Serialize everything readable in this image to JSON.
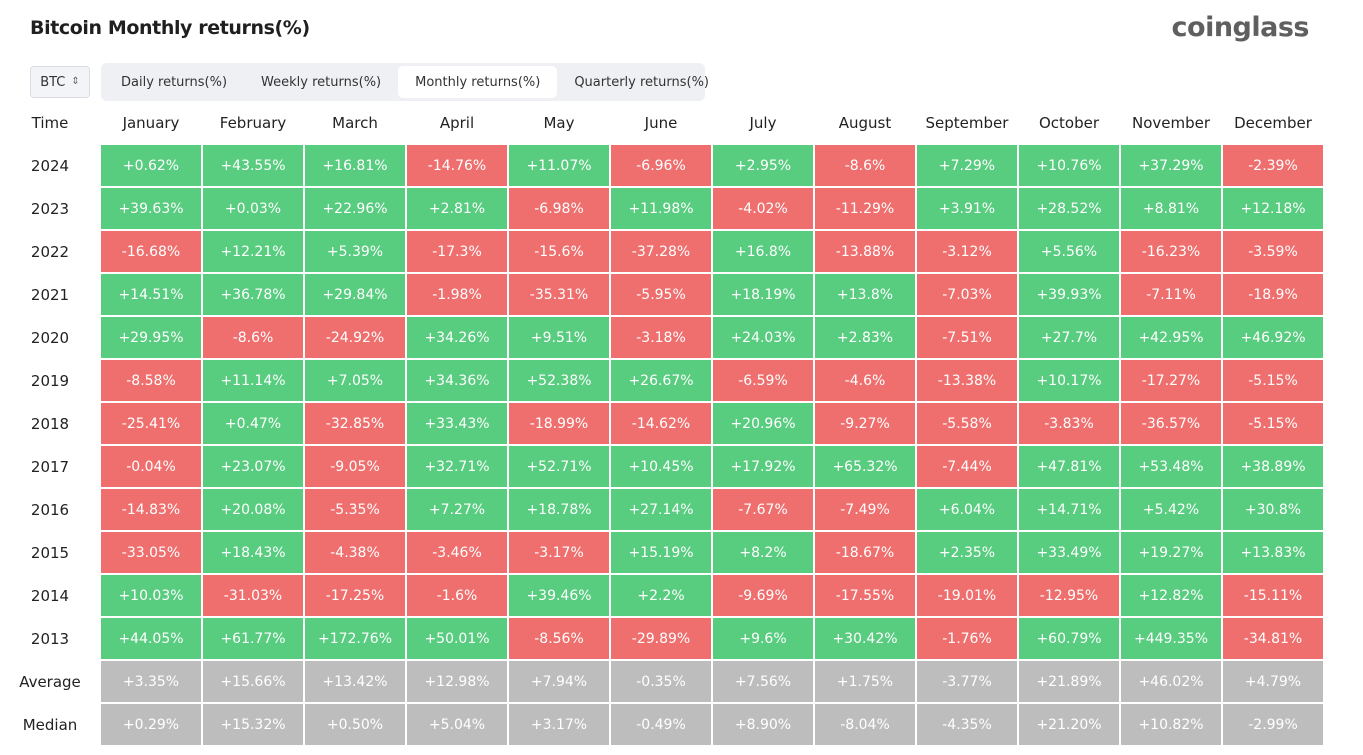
{
  "title": "Bitcoin Monthly returns(%)",
  "logo": "coinglass",
  "symbol": "BTC",
  "tabs": [
    "Daily returns(%)",
    "Weekly returns(%)",
    "Monthly returns(%)",
    "Quarterly returns(%)"
  ],
  "active_tab": 2,
  "colors": {
    "positive": "#58cc7f",
    "negative": "#ef6f6e",
    "summary": "#bdbdbd"
  },
  "header": [
    "Time",
    "January",
    "February",
    "March",
    "April",
    "May",
    "June",
    "July",
    "August",
    "September",
    "October",
    "November",
    "December"
  ],
  "rows": [
    {
      "label": "2024",
      "kind": "year",
      "values": [
        "+0.62%",
        "+43.55%",
        "+16.81%",
        "-14.76%",
        "+11.07%",
        "-6.96%",
        "+2.95%",
        "-8.6%",
        "+7.29%",
        "+10.76%",
        "+37.29%",
        "-2.39%"
      ]
    },
    {
      "label": "2023",
      "kind": "year",
      "values": [
        "+39.63%",
        "+0.03%",
        "+22.96%",
        "+2.81%",
        "-6.98%",
        "+11.98%",
        "-4.02%",
        "-11.29%",
        "+3.91%",
        "+28.52%",
        "+8.81%",
        "+12.18%"
      ]
    },
    {
      "label": "2022",
      "kind": "year",
      "values": [
        "-16.68%",
        "+12.21%",
        "+5.39%",
        "-17.3%",
        "-15.6%",
        "-37.28%",
        "+16.8%",
        "-13.88%",
        "-3.12%",
        "+5.56%",
        "-16.23%",
        "-3.59%"
      ]
    },
    {
      "label": "2021",
      "kind": "year",
      "values": [
        "+14.51%",
        "+36.78%",
        "+29.84%",
        "-1.98%",
        "-35.31%",
        "-5.95%",
        "+18.19%",
        "+13.8%",
        "-7.03%",
        "+39.93%",
        "-7.11%",
        "-18.9%"
      ]
    },
    {
      "label": "2020",
      "kind": "year",
      "values": [
        "+29.95%",
        "-8.6%",
        "-24.92%",
        "+34.26%",
        "+9.51%",
        "-3.18%",
        "+24.03%",
        "+2.83%",
        "-7.51%",
        "+27.7%",
        "+42.95%",
        "+46.92%"
      ]
    },
    {
      "label": "2019",
      "kind": "year",
      "values": [
        "-8.58%",
        "+11.14%",
        "+7.05%",
        "+34.36%",
        "+52.38%",
        "+26.67%",
        "-6.59%",
        "-4.6%",
        "-13.38%",
        "+10.17%",
        "-17.27%",
        "-5.15%"
      ]
    },
    {
      "label": "2018",
      "kind": "year",
      "values": [
        "-25.41%",
        "+0.47%",
        "-32.85%",
        "+33.43%",
        "-18.99%",
        "-14.62%",
        "+20.96%",
        "-9.27%",
        "-5.58%",
        "-3.83%",
        "-36.57%",
        "-5.15%"
      ]
    },
    {
      "label": "2017",
      "kind": "year",
      "values": [
        "-0.04%",
        "+23.07%",
        "-9.05%",
        "+32.71%",
        "+52.71%",
        "+10.45%",
        "+17.92%",
        "+65.32%",
        "-7.44%",
        "+47.81%",
        "+53.48%",
        "+38.89%"
      ]
    },
    {
      "label": "2016",
      "kind": "year",
      "values": [
        "-14.83%",
        "+20.08%",
        "-5.35%",
        "+7.27%",
        "+18.78%",
        "+27.14%",
        "-7.67%",
        "-7.49%",
        "+6.04%",
        "+14.71%",
        "+5.42%",
        "+30.8%"
      ]
    },
    {
      "label": "2015",
      "kind": "year",
      "values": [
        "-33.05%",
        "+18.43%",
        "-4.38%",
        "-3.46%",
        "-3.17%",
        "+15.19%",
        "+8.2%",
        "-18.67%",
        "+2.35%",
        "+33.49%",
        "+19.27%",
        "+13.83%"
      ]
    },
    {
      "label": "2014",
      "kind": "year",
      "values": [
        "+10.03%",
        "-31.03%",
        "-17.25%",
        "-1.6%",
        "+39.46%",
        "+2.2%",
        "-9.69%",
        "-17.55%",
        "-19.01%",
        "-12.95%",
        "+12.82%",
        "-15.11%"
      ]
    },
    {
      "label": "2013",
      "kind": "year",
      "values": [
        "+44.05%",
        "+61.77%",
        "+172.76%",
        "+50.01%",
        "-8.56%",
        "-29.89%",
        "+9.6%",
        "+30.42%",
        "-1.76%",
        "+60.79%",
        "+449.35%",
        "-34.81%"
      ]
    },
    {
      "label": "Average",
      "kind": "summary",
      "values": [
        "+3.35%",
        "+15.66%",
        "+13.42%",
        "+12.98%",
        "+7.94%",
        "-0.35%",
        "+7.56%",
        "+1.75%",
        "-3.77%",
        "+21.89%",
        "+46.02%",
        "+4.79%"
      ]
    },
    {
      "label": "Median",
      "kind": "summary",
      "values": [
        "+0.29%",
        "+15.32%",
        "+0.50%",
        "+5.04%",
        "+3.17%",
        "-0.49%",
        "+8.90%",
        "-8.04%",
        "-4.35%",
        "+21.20%",
        "+10.82%",
        "-2.99%"
      ]
    }
  ]
}
